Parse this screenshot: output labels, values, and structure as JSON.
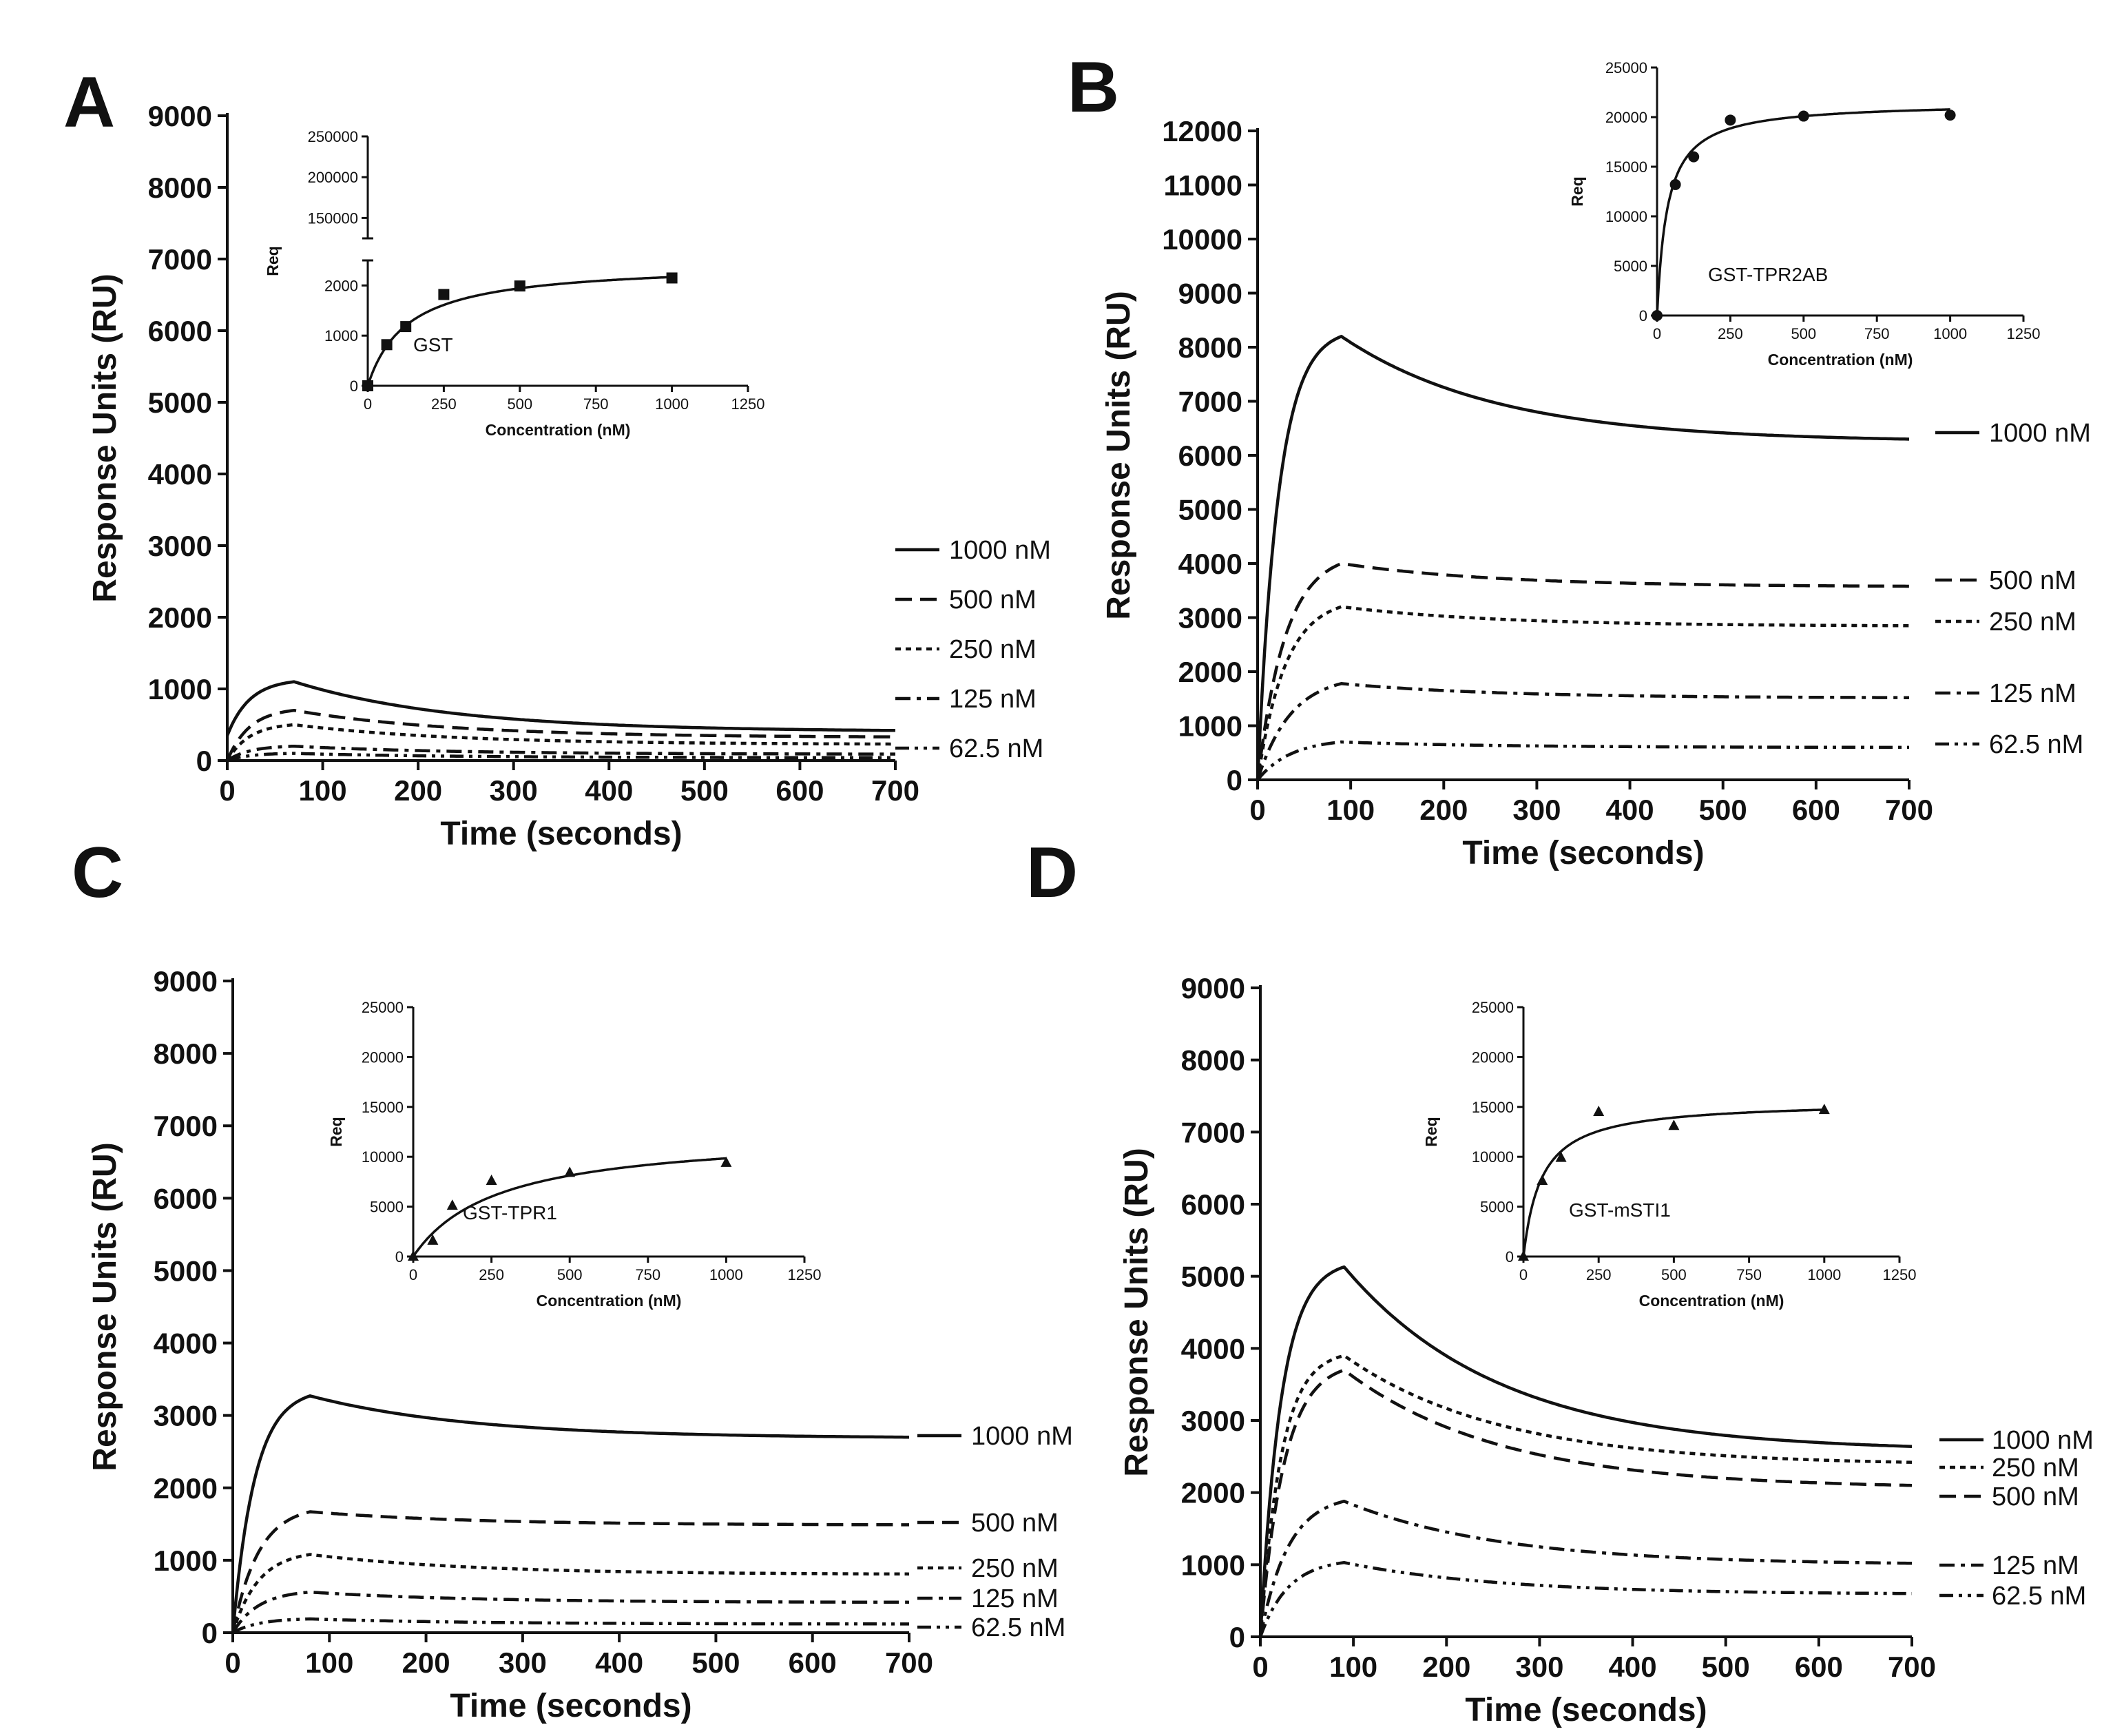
{
  "figure": {
    "panels": [
      "A",
      "B",
      "C",
      "D"
    ]
  },
  "colors": {
    "ink": "#111111",
    "background": "#ffffff"
  },
  "chart_data": [
    {
      "panel": "A",
      "type": "line",
      "title": "",
      "xlabel": "Time (seconds)",
      "ylabel": "Response Units (RU)",
      "xlim": [
        0,
        700
      ],
      "ylim": [
        0,
        9000
      ],
      "xticks": [
        0,
        100,
        200,
        300,
        400,
        500,
        600,
        700
      ],
      "yticks": [
        0,
        1000,
        2000,
        3000,
        4000,
        5000,
        6000,
        7000,
        8000,
        9000
      ],
      "association_end": 70,
      "legend_order": [
        "1000 nM",
        "500 nM",
        "250 nM",
        "125 nM",
        "62.5 nM"
      ],
      "series": [
        {
          "name": "1000 nM",
          "style": "solid",
          "peak": 1100,
          "end": 420,
          "curve": 3.0,
          "start": 350
        },
        {
          "name": "500 nM",
          "style": "dash",
          "peak": 700,
          "end": 330,
          "curve": 3.0,
          "start": 0
        },
        {
          "name": "250 nM",
          "style": "dot",
          "peak": 500,
          "end": 230,
          "curve": 3.0,
          "start": 0
        },
        {
          "name": "125 nM",
          "style": "dashdot",
          "peak": 200,
          "end": 90,
          "curve": 3.0,
          "start": 0
        },
        {
          "name": "62.5 nM",
          "style": "dashdotdot",
          "peak": 100,
          "end": 40,
          "curve": 3.0,
          "start": 0
        }
      ],
      "inset": {
        "label": "GST",
        "xlabel": "Concentration (nM)",
        "ylabel": "Req",
        "xlim": [
          0,
          1250
        ],
        "xticks": [
          0,
          250,
          500,
          750,
          1000,
          1250
        ],
        "yticks_lower": [
          0,
          1000,
          2000
        ],
        "yticks_upper": [
          150000,
          200000,
          250000
        ],
        "broken_axis": true,
        "lower_ylim": [
          0,
          2500
        ],
        "upper_ylim": [
          125000,
          250000
        ],
        "marker": "square",
        "points": [
          [
            0,
            0
          ],
          [
            62.5,
            820
          ],
          [
            125,
            1180
          ],
          [
            250,
            1820
          ],
          [
            500,
            1990
          ],
          [
            1000,
            2150
          ]
        ],
        "fit": {
          "bmax": 2450,
          "kd": 130
        }
      }
    },
    {
      "panel": "B",
      "type": "line",
      "title": "",
      "xlabel": "Time (seconds)",
      "ylabel": "Response Units (RU)",
      "xlim": [
        0,
        700
      ],
      "ylim": [
        0,
        12000
      ],
      "xticks": [
        0,
        100,
        200,
        300,
        400,
        500,
        600,
        700
      ],
      "yticks": [
        0,
        1000,
        2000,
        3000,
        4000,
        5000,
        6000,
        7000,
        8000,
        9000,
        10000,
        11000,
        12000
      ],
      "association_end": 90,
      "legend_order": [
        "1000 nM",
        "500 nM",
        "250 nM",
        "125 nM",
        "62.5 nM"
      ],
      "series": [
        {
          "name": "1000 nM",
          "style": "solid",
          "peak": 8200,
          "end": 6300,
          "curve": 4.0,
          "start": 0
        },
        {
          "name": "500 nM",
          "style": "dash",
          "peak": 4000,
          "end": 3580,
          "curve": 3.0,
          "start": 0
        },
        {
          "name": "250 nM",
          "style": "dot",
          "peak": 3200,
          "end": 2850,
          "curve": 3.0,
          "start": 0
        },
        {
          "name": "125 nM",
          "style": "dashdot",
          "peak": 1780,
          "end": 1520,
          "curve": 2.5,
          "start": 0
        },
        {
          "name": "62.5 nM",
          "style": "dashdotdot",
          "peak": 700,
          "end": 600,
          "curve": 2.5,
          "start": 0
        }
      ],
      "inset": {
        "label": "GST-TPR2AB",
        "xlabel": "Concentration (nM)",
        "ylabel": "Req",
        "xlim": [
          0,
          1250
        ],
        "ylim": [
          0,
          25000
        ],
        "xticks": [
          0,
          250,
          500,
          750,
          1000,
          1250
        ],
        "yticks": [
          0,
          5000,
          10000,
          15000,
          20000,
          25000
        ],
        "broken_axis": false,
        "marker": "circle",
        "points": [
          [
            0,
            0
          ],
          [
            62.5,
            13200
          ],
          [
            125,
            16000
          ],
          [
            250,
            19700
          ],
          [
            500,
            20100
          ],
          [
            1000,
            20200
          ]
        ],
        "fit": {
          "bmax": 21500,
          "kd": 35
        }
      }
    },
    {
      "panel": "C",
      "type": "line",
      "title": "",
      "xlabel": "Time (seconds)",
      "ylabel": "Response Units (RU)",
      "xlim": [
        0,
        700
      ],
      "ylim": [
        0,
        9000
      ],
      "xticks": [
        0,
        100,
        200,
        300,
        400,
        500,
        600,
        700
      ],
      "yticks": [
        0,
        1000,
        2000,
        3000,
        4000,
        5000,
        6000,
        7000,
        8000,
        9000
      ],
      "association_end": 80,
      "legend_order": [
        "1000 nM",
        "500 nM",
        "250 nM",
        "125 nM",
        "62.5 nM"
      ],
      "series": [
        {
          "name": "1000 nM",
          "style": "solid",
          "peak": 3270,
          "end": 2700,
          "curve": 3.5,
          "start": 0
        },
        {
          "name": "500 nM",
          "style": "dash",
          "peak": 1670,
          "end": 1490,
          "curve": 3.0,
          "start": 0
        },
        {
          "name": "250 nM",
          "style": "dot",
          "peak": 1080,
          "end": 810,
          "curve": 3.0,
          "start": 0
        },
        {
          "name": "125 nM",
          "style": "dashdot",
          "peak": 560,
          "end": 420,
          "curve": 3.0,
          "start": 0
        },
        {
          "name": "62.5 nM",
          "style": "dashdotdot",
          "peak": 190,
          "end": 120,
          "curve": 3.0,
          "start": 0
        }
      ],
      "inset": {
        "label": "GST-TPR1",
        "xlabel": "Concentration (nM)",
        "ylabel": "Req",
        "xlim": [
          0,
          1250
        ],
        "ylim": [
          0,
          25000
        ],
        "xticks": [
          0,
          250,
          500,
          750,
          1000,
          1250
        ],
        "yticks": [
          0,
          5000,
          10000,
          15000,
          20000,
          25000
        ],
        "broken_axis": false,
        "marker": "triangle",
        "points": [
          [
            0,
            0
          ],
          [
            62.5,
            1600
          ],
          [
            125,
            5100
          ],
          [
            250,
            7600
          ],
          [
            500,
            8400
          ],
          [
            1000,
            9400
          ]
        ],
        "fit": {
          "bmax": 12500,
          "kd": 270
        }
      }
    },
    {
      "panel": "D",
      "type": "line",
      "title": "",
      "xlabel": "Time (seconds)",
      "ylabel": "Response Units (RU)",
      "xlim": [
        0,
        700
      ],
      "ylim": [
        0,
        9000
      ],
      "xticks": [
        0,
        100,
        200,
        300,
        400,
        500,
        600,
        700
      ],
      "yticks": [
        0,
        1000,
        2000,
        3000,
        4000,
        5000,
        6000,
        7000,
        8000,
        9000
      ],
      "association_end": 90,
      "legend_order": [
        "1000 nM",
        "250 nM",
        "500 nM",
        "125 nM",
        "62.5 nM"
      ],
      "series": [
        {
          "name": "1000 nM",
          "style": "solid",
          "peak": 5130,
          "end": 2640,
          "curve": 4.0,
          "start": 0
        },
        {
          "name": "250 nM",
          "style": "dot",
          "peak": 3900,
          "end": 2420,
          "curve": 4.0,
          "start": 0
        },
        {
          "name": "500 nM",
          "style": "dash",
          "peak": 3700,
          "end": 2100,
          "curve": 3.5,
          "start": 0
        },
        {
          "name": "125 nM",
          "style": "dashdot",
          "peak": 1880,
          "end": 1020,
          "curve": 3.0,
          "start": 0
        },
        {
          "name": "62.5 nM",
          "style": "dashdotdot",
          "peak": 1030,
          "end": 600,
          "curve": 3.0,
          "start": 0
        }
      ],
      "inset": {
        "label": "GST-mSTI1",
        "xlabel": "Concentration (nM)",
        "ylabel": "Req",
        "xlim": [
          0,
          1250
        ],
        "ylim": [
          0,
          25000
        ],
        "xticks": [
          0,
          250,
          500,
          750,
          1000,
          1250
        ],
        "yticks": [
          0,
          5000,
          10000,
          15000,
          20000,
          25000
        ],
        "broken_axis": false,
        "marker": "triangle",
        "points": [
          [
            0,
            0
          ],
          [
            62.5,
            7600
          ],
          [
            125,
            9900
          ],
          [
            250,
            14500
          ],
          [
            500,
            13100
          ],
          [
            1000,
            14700
          ]
        ],
        "fit": {
          "bmax": 15600,
          "kd": 60
        }
      }
    }
  ]
}
